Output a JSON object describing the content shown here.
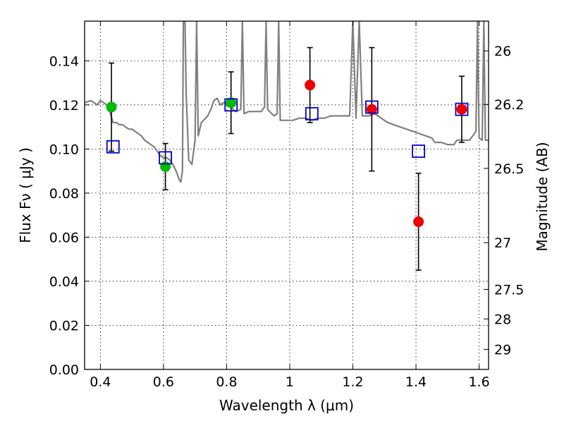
{
  "chart_data": {
    "type": "scatter",
    "title": "",
    "xlabel": "Wavelength  λ (μm)",
    "ylabel": "Flux  Fν  ( μJy )",
    "ylabel_right": "Magnitude (AB)",
    "xlim": [
      0.35,
      1.63
    ],
    "ylim": [
      0.0,
      0.158
    ],
    "grid": true,
    "grid_style": "dotted",
    "x_ticks": [
      0.4,
      0.6,
      0.8,
      1.0,
      1.2,
      1.4,
      1.6
    ],
    "x_tick_labels": [
      "0.4",
      "0.6",
      "0.8",
      "1",
      "1.2",
      "1.4",
      "1.6"
    ],
    "y_ticks": [
      0.0,
      0.02,
      0.04,
      0.06,
      0.08,
      0.1,
      0.12,
      0.14
    ],
    "y_tick_labels": [
      "0.00",
      "0.02",
      "0.04",
      "0.06",
      "0.08",
      "0.10",
      "0.12",
      "0.14"
    ],
    "right_axis_ticks": [
      {
        "label": "26",
        "flux": 0.1445
      },
      {
        "label": "26.2",
        "flux": 0.1202
      },
      {
        "label": "26.5",
        "flux": 0.0912
      },
      {
        "label": "27",
        "flux": 0.0575
      },
      {
        "label": "27.5",
        "flux": 0.0363
      },
      {
        "label": "28",
        "flux": 0.0229
      },
      {
        "label": "29",
        "flux": 0.0091
      }
    ],
    "series": [
      {
        "marker": "circle",
        "color": "#00bb00",
        "points": [
          {
            "x": 0.435,
            "y": 0.119,
            "err": 0.02
          },
          {
            "x": 0.606,
            "y": 0.092,
            "err": 0.0105
          },
          {
            "x": 0.814,
            "y": 0.121,
            "err": 0.014
          }
        ]
      },
      {
        "marker": "circle",
        "color": "#ee0000",
        "points": [
          {
            "x": 1.064,
            "y": 0.129,
            "err": 0.017
          },
          {
            "x": 1.26,
            "y": 0.118,
            "err": 0.028
          },
          {
            "x": 1.408,
            "y": 0.067,
            "err": 0.022
          },
          {
            "x": 1.545,
            "y": 0.118,
            "err": 0.015
          }
        ]
      },
      {
        "marker": "open-square",
        "color": "#0000cc",
        "points": [
          {
            "x": 0.44,
            "y": 0.101
          },
          {
            "x": 0.606,
            "y": 0.096
          },
          {
            "x": 0.814,
            "y": 0.12
          },
          {
            "x": 1.07,
            "y": 0.116
          },
          {
            "x": 1.26,
            "y": 0.119
          },
          {
            "x": 1.408,
            "y": 0.099
          },
          {
            "x": 1.545,
            "y": 0.118
          }
        ]
      }
    ],
    "model_spectrum": {
      "color": "#808080",
      "points": [
        [
          0.35,
          0.121
        ],
        [
          0.37,
          0.122
        ],
        [
          0.39,
          0.12
        ],
        [
          0.4,
          0.122
        ],
        [
          0.41,
          0.121
        ],
        [
          0.42,
          0.12
        ],
        [
          0.43,
          0.117
        ],
        [
          0.44,
          0.112
        ],
        [
          0.45,
          0.112
        ],
        [
          0.46,
          0.111
        ],
        [
          0.47,
          0.111
        ],
        [
          0.48,
          0.11
        ],
        [
          0.49,
          0.109
        ],
        [
          0.5,
          0.109
        ],
        [
          0.51,
          0.108
        ],
        [
          0.52,
          0.107
        ],
        [
          0.53,
          0.106
        ],
        [
          0.54,
          0.104
        ],
        [
          0.55,
          0.103
        ],
        [
          0.56,
          0.102
        ],
        [
          0.57,
          0.101
        ],
        [
          0.58,
          0.099
        ],
        [
          0.59,
          0.097
        ],
        [
          0.6,
          0.096
        ],
        [
          0.61,
          0.096
        ],
        [
          0.62,
          0.095
        ],
        [
          0.63,
          0.093
        ],
        [
          0.64,
          0.09
        ],
        [
          0.65,
          0.086
        ],
        [
          0.655,
          0.085
        ],
        [
          0.66,
          0.09
        ],
        [
          0.663,
          0.158
        ],
        [
          0.668,
          0.158
        ],
        [
          0.672,
          0.125
        ],
        [
          0.68,
          0.095
        ],
        [
          0.69,
          0.093
        ],
        [
          0.7,
          0.104
        ],
        [
          0.705,
          0.158
        ],
        [
          0.71,
          0.106
        ],
        [
          0.72,
          0.112
        ],
        [
          0.74,
          0.115
        ],
        [
          0.75,
          0.118
        ],
        [
          0.76,
          0.122
        ],
        [
          0.77,
          0.123
        ],
        [
          0.78,
          0.12
        ],
        [
          0.79,
          0.121
        ],
        [
          0.8,
          0.121
        ],
        [
          0.81,
          0.12
        ],
        [
          0.82,
          0.118
        ],
        [
          0.83,
          0.117
        ],
        [
          0.845,
          0.118
        ],
        [
          0.85,
          0.158
        ],
        [
          0.855,
          0.116
        ],
        [
          0.87,
          0.117
        ],
        [
          0.89,
          0.117
        ],
        [
          0.91,
          0.117
        ],
        [
          0.92,
          0.119
        ],
        [
          0.925,
          0.158
        ],
        [
          0.93,
          0.118
        ],
        [
          0.95,
          0.115
        ],
        [
          0.96,
          0.116
        ],
        [
          0.965,
          0.158
        ],
        [
          0.97,
          0.113
        ],
        [
          0.99,
          0.113
        ],
        [
          1.01,
          0.113
        ],
        [
          1.03,
          0.114
        ],
        [
          1.05,
          0.114
        ],
        [
          1.07,
          0.113
        ],
        [
          1.09,
          0.114
        ],
        [
          1.11,
          0.114
        ],
        [
          1.13,
          0.115
        ],
        [
          1.15,
          0.115
        ],
        [
          1.17,
          0.115
        ],
        [
          1.19,
          0.115
        ],
        [
          1.2,
          0.158
        ],
        [
          1.21,
          0.114
        ],
        [
          1.22,
          0.158
        ],
        [
          1.23,
          0.115
        ],
        [
          1.25,
          0.115
        ],
        [
          1.27,
          0.116
        ],
        [
          1.29,
          0.114
        ],
        [
          1.31,
          0.112
        ],
        [
          1.33,
          0.111
        ],
        [
          1.35,
          0.11
        ],
        [
          1.37,
          0.109
        ],
        [
          1.39,
          0.108
        ],
        [
          1.41,
          0.107
        ],
        [
          1.43,
          0.106
        ],
        [
          1.45,
          0.105
        ],
        [
          1.46,
          0.103
        ],
        [
          1.48,
          0.103
        ],
        [
          1.5,
          0.102
        ],
        [
          1.52,
          0.102
        ],
        [
          1.53,
          0.104
        ],
        [
          1.55,
          0.104
        ],
        [
          1.57,
          0.104
        ],
        [
          1.58,
          0.106
        ],
        [
          1.59,
          0.108
        ],
        [
          1.595,
          0.158
        ],
        [
          1.6,
          0.105
        ],
        [
          1.61,
          0.104
        ],
        [
          1.615,
          0.158
        ],
        [
          1.62,
          0.104
        ],
        [
          1.63,
          0.104
        ]
      ]
    }
  }
}
